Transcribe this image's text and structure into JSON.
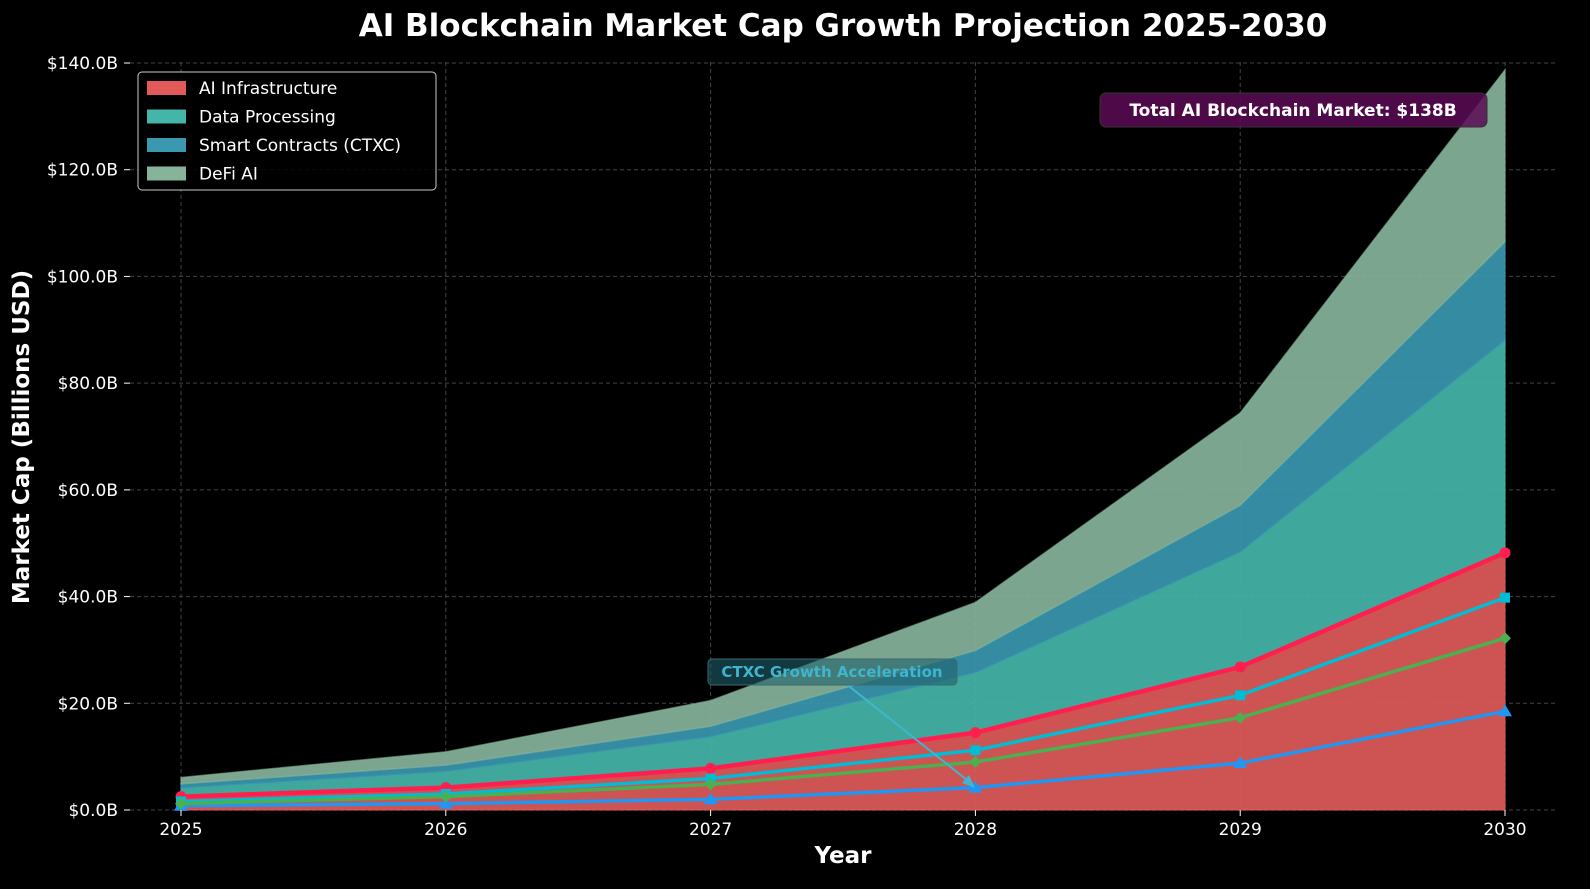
{
  "chart_data": {
    "type": "area",
    "stacked": true,
    "title": "AI Blockchain Market Cap Growth Projection 2025-2030",
    "xlabel": "Year",
    "ylabel": "Market Cap (Billions USD)",
    "x": [
      2025,
      2026,
      2027,
      2028,
      2029,
      2030
    ],
    "xticks": [
      "2025",
      "2026",
      "2027",
      "2028",
      "2029",
      "2030"
    ],
    "ylim": [
      0,
      140
    ],
    "yticks": [
      "$0.0B",
      "$20.0B",
      "$40.0B",
      "$60.0B",
      "$80.0B",
      "$100.0B",
      "$120.0B",
      "$140.0B"
    ],
    "ytick_values": [
      0,
      20,
      40,
      60,
      80,
      100,
      120,
      140
    ],
    "grid": true,
    "legend_placement": "top-left",
    "series": [
      {
        "name": "AI Infrastructure",
        "values": [
          2.5,
          4.2,
          7.8,
          14.5,
          26.8,
          48.2
        ],
        "fill": "#e05a5a",
        "line": "#ff1f4f",
        "marker": "circle"
      },
      {
        "name": "Data Processing",
        "values": [
          1.6,
          3.0,
          5.9,
          11.2,
          21.5,
          39.8
        ],
        "fill": "#45b5aa",
        "line": "#00bcd4",
        "marker": "square"
      },
      {
        "name": "Smart Contracts (CTXC)",
        "values": [
          0.8,
          1.2,
          2.0,
          4.2,
          8.8,
          18.5
        ],
        "fill": "#3a98b0",
        "line": "#2196f3",
        "marker": "triangle"
      },
      {
        "name": "DeFi AI",
        "values": [
          1.2,
          2.5,
          4.8,
          9.0,
          17.3,
          32.2
        ],
        "fill": "#86b39a",
        "line": "#4caf50",
        "marker": "diamond"
      }
    ],
    "annotations": [
      {
        "text": "Total AI Blockchain Market: $138B",
        "color": "#5c0a55"
      },
      {
        "text": "CTXC Growth Acceleration",
        "color": "#3fb6cf",
        "points_to_year": 2028
      }
    ]
  }
}
